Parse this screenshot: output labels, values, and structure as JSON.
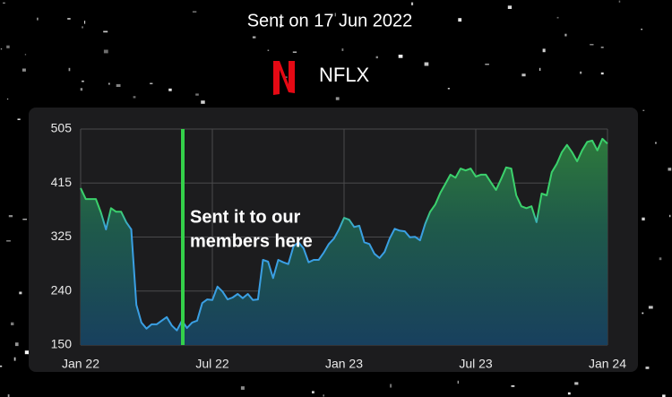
{
  "chart_data": {
    "type": "line",
    "title": "Sent on 17 Jun 2022",
    "ticker": "NFLX",
    "annotation": [
      "Sent it to our",
      "members here"
    ],
    "categories": [
      "Jan 22",
      null,
      null,
      null,
      null,
      null,
      null,
      null,
      null,
      null,
      null,
      null,
      null,
      null,
      null,
      null,
      null,
      null,
      null,
      null,
      null,
      null,
      null,
      null,
      null,
      null,
      "Jul 22",
      null,
      null,
      null,
      null,
      null,
      null,
      null,
      null,
      null,
      null,
      null,
      null,
      null,
      null,
      null,
      null,
      null,
      null,
      null,
      null,
      null,
      null,
      null,
      null,
      null,
      "Jan 23",
      null,
      null,
      null,
      null,
      null,
      null,
      null,
      null,
      null,
      null,
      null,
      null,
      null,
      null,
      null,
      null,
      null,
      null,
      null,
      null,
      null,
      null,
      null,
      null,
      null,
      "Jul 23",
      null,
      null,
      null,
      null,
      null,
      null,
      null,
      null,
      null,
      null,
      null,
      null,
      null,
      null,
      null,
      null,
      null,
      null,
      null,
      null,
      null,
      null,
      null,
      null,
      null,
      "Jan 24"
    ],
    "values": [
      408,
      390,
      390,
      390,
      368,
      340,
      375,
      369,
      369,
      352,
      340,
      216,
      187,
      177,
      184,
      184,
      190,
      196,
      182,
      174,
      190,
      178,
      187,
      190,
      219,
      225,
      224,
      246,
      238,
      225,
      228,
      234,
      227,
      234,
      224,
      225,
      290,
      287,
      260,
      290,
      286,
      283,
      312,
      319,
      309,
      286,
      290,
      290,
      302,
      316,
      325,
      340,
      359,
      356,
      344,
      346,
      319,
      316,
      300,
      293,
      303,
      325,
      341,
      338,
      337,
      327,
      328,
      322,
      349,
      369,
      381,
      400,
      415,
      430,
      425,
      440,
      437,
      440,
      427,
      430,
      430,
      417,
      405,
      423,
      442,
      440,
      396,
      378,
      375,
      378,
      352,
      399,
      396,
      434,
      448,
      467,
      479,
      467,
      452,
      470,
      484,
      486,
      470,
      489,
      481
    ],
    "ylim": [
      150,
      505
    ],
    "yticks": [
      150,
      {
        "value": 238.75,
        "label": "240"
      },
      {
        "value": 327.5,
        "label": "325"
      },
      {
        "value": 416.25,
        "label": "415"
      },
      505
    ],
    "grid": true,
    "colors": {
      "low": "#3a9fe3",
      "high": "#3bd16c",
      "marker": "#34d14a",
      "logo": "#e50914"
    }
  }
}
